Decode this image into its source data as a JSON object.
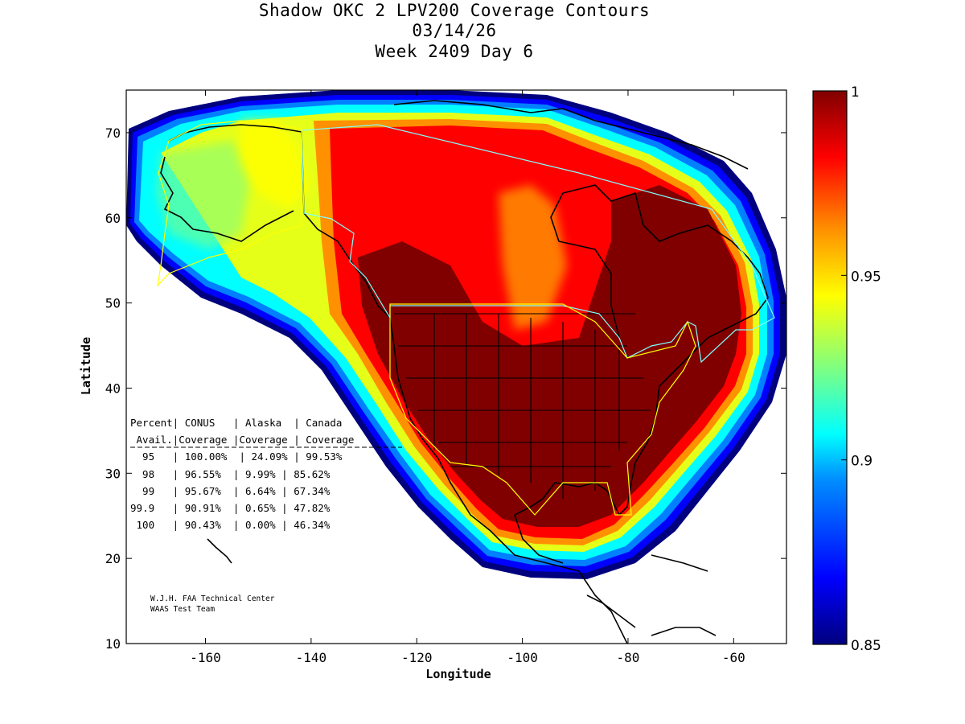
{
  "title": {
    "line1": "Shadow OKC 2 LPV200 Coverage Contours",
    "line2": "03/14/26",
    "line3": "Week 2409 Day 6"
  },
  "axes": {
    "xlabel": "Longitude",
    "ylabel": "Latitude",
    "xlim": [
      -175,
      -50
    ],
    "ylim": [
      10,
      75
    ],
    "xticks": [
      -160,
      -140,
      -120,
      -100,
      -80,
      -60
    ],
    "yticks": [
      10,
      20,
      30,
      40,
      50,
      60,
      70
    ],
    "xtick_labels": [
      "-160",
      "-140",
      "-120",
      "-100",
      "-80",
      "-60"
    ],
    "ytick_labels": [
      "10",
      "20",
      "30",
      "40",
      "50",
      "60",
      "70"
    ]
  },
  "colorbar": {
    "range": [
      0.85,
      1
    ],
    "ticks": [
      1,
      0.95,
      0.9,
      0.85
    ],
    "tick_labels": [
      "1",
      "0.95",
      "0.9",
      "0.85"
    ],
    "colormap": "jet",
    "colors": [
      "#00007f",
      "#0000ff",
      "#0080ff",
      "#00ffff",
      "#80ff80",
      "#ffff00",
      "#ff8000",
      "#ff0000",
      "#800000"
    ]
  },
  "table": {
    "header1": "Percent| CONUS   | Alaska  | Canada",
    "header2": " Avail.|Coverage |Coverage | Coverage",
    "rule": "-------------------------------------------",
    "rows": [
      "  95   | 100.00%  | 24.09% | 99.53%",
      "  98   | 96.55%  | 9.99% | 85.62%",
      "  99   | 95.67%  | 6.64% | 67.34%",
      "99.9   | 90.91%  | 0.65% | 47.82%",
      " 100   | 90.43%  | 0.00% | 46.34%"
    ]
  },
  "credit": {
    "line1": "W.J.H. FAA Technical Center",
    "line2": "WAAS Test Team"
  }
}
